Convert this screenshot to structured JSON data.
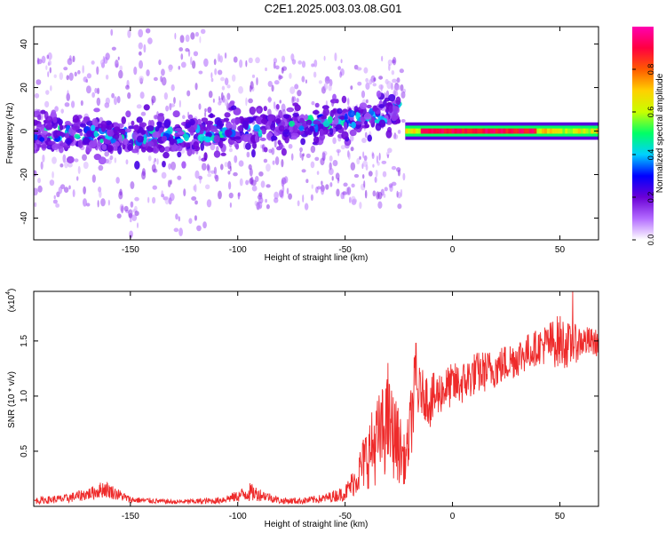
{
  "figure": {
    "title": "C2E1.2025.003.03.08.G01"
  },
  "colorbar": {
    "label": "Normalized spectral amplitude",
    "ticks": [
      "0.0",
      "0.2",
      "0.4",
      "0.6",
      "0.8"
    ],
    "tick_values": [
      0.0,
      0.2,
      0.4,
      0.6,
      0.8
    ],
    "range": [
      0,
      1
    ],
    "colormap": [
      "#ffffff",
      "#b36bff",
      "#6a00d6",
      "#0000ff",
      "#00d0ff",
      "#00ff66",
      "#c8ff00",
      "#ffd000",
      "#ff5a00",
      "#ff0040",
      "#ff00b0"
    ]
  },
  "chart_data": [
    {
      "type": "heatmap",
      "xlabel": "Height of straight line (km)",
      "ylabel": "Frequency (Hz)",
      "xlim": [
        -195,
        68
      ],
      "ylim": [
        -50,
        48
      ],
      "xticks": [
        -150,
        -100,
        -50,
        0,
        50
      ],
      "xtick_labels": [
        "-150",
        "-100",
        "-50",
        "0",
        "50"
      ],
      "yticks": [
        -40,
        -20,
        0,
        20,
        40
      ],
      "ytick_labels": [
        "-40",
        "-20",
        "0",
        "20",
        "40"
      ],
      "description_points": {
        "main_band_x": [
          -195,
          -170,
          -150,
          -120,
          -100,
          -80,
          -60,
          -40,
          -30,
          -25
        ],
        "main_band_center_freq": [
          -2,
          -1,
          -3,
          -2,
          0,
          2,
          4,
          6,
          8,
          10
        ],
        "steady_line_x": [
          -22,
          68
        ],
        "steady_line_freq": 0,
        "steady_line_amplitude": 0.95
      }
    },
    {
      "type": "line",
      "xlabel": "Height of straight line (km)",
      "ylabel": "SNR (10 * v/v)",
      "yscale_label": "(x10",
      "yscale_exponent": "4",
      "xlim": [
        -195,
        68
      ],
      "ylim": [
        0,
        1.95
      ],
      "xticks": [
        -150,
        -100,
        -50,
        0,
        50
      ],
      "xtick_labels": [
        "-150",
        "-100",
        "-50",
        "0",
        "50"
      ],
      "yticks": [
        0.5,
        1.0,
        1.5
      ],
      "ytick_labels": [
        "0.5",
        "1.0",
        "1.5"
      ],
      "color": "#ee2a2a",
      "envelope": {
        "x": [
          -195,
          -180,
          -168,
          -162,
          -150,
          -130,
          -110,
          -100,
          -95,
          -88,
          -80,
          -70,
          -60,
          -50,
          -45,
          -40,
          -35,
          -30,
          -25,
          -22,
          -20,
          -18,
          -15,
          -10,
          -5,
          0,
          5,
          10,
          20,
          30,
          40,
          50,
          55,
          60,
          68
        ],
        "y": [
          0.05,
          0.07,
          0.12,
          0.16,
          0.06,
          0.04,
          0.05,
          0.09,
          0.13,
          0.1,
          0.05,
          0.05,
          0.07,
          0.12,
          0.25,
          0.45,
          0.6,
          0.75,
          0.55,
          0.4,
          0.65,
          1.0,
          1.05,
          0.95,
          1.05,
          1.1,
          1.12,
          1.2,
          1.25,
          1.35,
          1.45,
          1.5,
          1.45,
          1.5,
          1.48
        ],
        "amp": [
          0.03,
          0.04,
          0.06,
          0.08,
          0.03,
          0.02,
          0.03,
          0.05,
          0.09,
          0.05,
          0.03,
          0.03,
          0.04,
          0.07,
          0.15,
          0.3,
          0.4,
          0.45,
          0.35,
          0.2,
          0.3,
          0.4,
          0.2,
          0.25,
          0.2,
          0.2,
          0.2,
          0.2,
          0.18,
          0.18,
          0.16,
          0.25,
          0.2,
          0.15,
          0.12
        ]
      },
      "peaks": [
        {
          "x": -30,
          "y": 1.3
        },
        {
          "x": -17,
          "y": 1.48
        },
        {
          "x": 56,
          "y": 1.95
        }
      ]
    }
  ]
}
